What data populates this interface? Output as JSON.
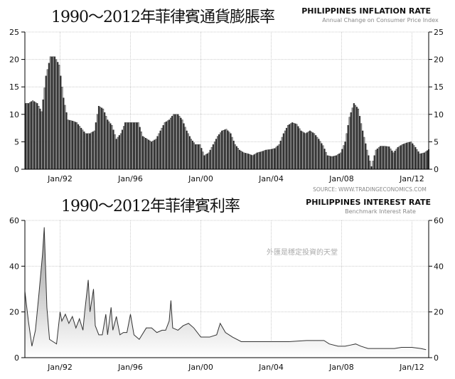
{
  "chart_data": [
    {
      "type": "bar",
      "title": "1990～2012年菲律賓通貨膨脹率",
      "header": "PHILIPPINES INFLATION RATE",
      "subtitle": "Annual Change on Consumer Price Index",
      "source": "SOURCE:  WWW.TRADINGECONOMICS.COM",
      "x_start": 1990,
      "x_step": 0.25,
      "ylim": [
        0,
        25
      ],
      "yticks": [
        0,
        5,
        10,
        15,
        20,
        25
      ],
      "xticks": [
        {
          "x": 1992,
          "label": "Jan/92"
        },
        {
          "x": 1996,
          "label": "Jan/96"
        },
        {
          "x": 2000,
          "label": "Jan/00"
        },
        {
          "x": 2004,
          "label": "Jan/04"
        },
        {
          "x": 2008,
          "label": "Jan/08"
        },
        {
          "x": 2012,
          "label": "Jan/12"
        }
      ],
      "values": [
        12,
        12.5,
        12,
        10.5,
        17,
        20.5,
        20.5,
        19,
        13,
        9,
        8.8,
        8.5,
        7.5,
        6.5,
        6.5,
        7,
        11.5,
        11,
        9,
        8,
        5.5,
        6.5,
        8.5,
        8.5,
        8.5,
        8.5,
        6,
        5.5,
        5,
        5.5,
        7,
        8.5,
        9,
        10,
        10,
        9,
        7,
        5.5,
        4.5,
        4.5,
        2.5,
        3,
        4.5,
        6,
        7,
        7.3,
        6.5,
        4.5,
        3.5,
        3,
        2.8,
        2.5,
        3,
        3.2,
        3.5,
        3.6,
        3.8,
        4.5,
        6.5,
        8,
        8.5,
        8.2,
        7,
        6.5,
        7,
        6.5,
        5.5,
        4.3,
        2.5,
        2.3,
        2.5,
        3,
        5,
        9.5,
        12,
        11,
        7,
        3.5,
        0.5,
        3.5,
        4.2,
        4.2,
        4.1,
        3,
        4,
        4.5,
        4.8,
        5,
        4,
        2.8,
        3,
        3.6
      ],
      "grid": true
    },
    {
      "type": "area",
      "title": "1990～2012年菲律賓利率",
      "header": "PHILIPPINES INTEREST RATE",
      "subtitle": "Benchmark Interest Rate",
      "watermark": "外匯是穩定投資的天堂",
      "ylim": [
        0,
        60
      ],
      "yticks": [
        0,
        20,
        40,
        60
      ],
      "xticks": [
        {
          "x": 1992,
          "label": "Jan/92"
        },
        {
          "x": 1996,
          "label": "Jan/96"
        },
        {
          "x": 2000,
          "label": "Jan/00"
        },
        {
          "x": 2004,
          "label": "Jan/04"
        },
        {
          "x": 2008,
          "label": "Jan/08"
        },
        {
          "x": 2012,
          "label": "Jan/12"
        }
      ],
      "x": [
        1990,
        1990.2,
        1990.4,
        1990.6,
        1990.8,
        1991,
        1991.1,
        1991.25,
        1991.4,
        1991.6,
        1991.8,
        1992,
        1992.1,
        1992.3,
        1992.5,
        1992.7,
        1992.9,
        1993.1,
        1993.3,
        1993.4,
        1993.6,
        1993.7,
        1993.9,
        1994,
        1994.2,
        1994.4,
        1994.6,
        1994.7,
        1994.9,
        1995,
        1995.2,
        1995.4,
        1995.6,
        1995.8,
        1996,
        1996.2,
        1996.5,
        1996.9,
        1997.2,
        1997.5,
        1997.8,
        1998,
        1998.2,
        1998.3,
        1998.4,
        1998.7,
        1999,
        1999.3,
        1999.6,
        2000,
        2000.5,
        2000.9,
        2001.1,
        2001.4,
        2001.8,
        2002.3,
        2003,
        2004,
        2005,
        2006,
        2007,
        2007.3,
        2007.8,
        2008.2,
        2008.5,
        2008.8,
        2009.1,
        2009.5,
        2010,
        2011,
        2011.4,
        2012,
        2012.5,
        2012.8
      ],
      "y": [
        29,
        16,
        5,
        12,
        28,
        45,
        57,
        22,
        8,
        7,
        6,
        20,
        16,
        19,
        15,
        18,
        13,
        17,
        12,
        20,
        34,
        20,
        30,
        14,
        10,
        10,
        19,
        10,
        22,
        12,
        18,
        10,
        11,
        11,
        19,
        10,
        8,
        13,
        13,
        11,
        12,
        12,
        16,
        25,
        13,
        12,
        14,
        15,
        13,
        9,
        9,
        10,
        15,
        11,
        9,
        7,
        7,
        7,
        7,
        7.5,
        7.5,
        6,
        5,
        5,
        5.5,
        6,
        5,
        4,
        4,
        4,
        4.5,
        4.5,
        4,
        3.5
      ],
      "grid": true
    }
  ]
}
